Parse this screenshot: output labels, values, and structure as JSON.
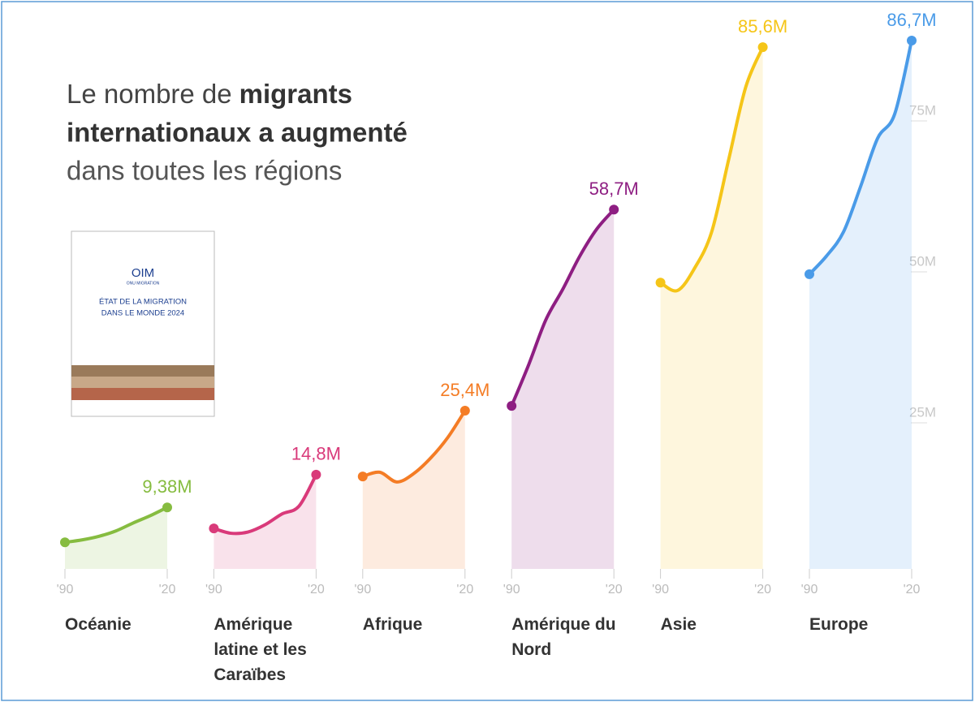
{
  "title": [
    "Le nombre de",
    "migrants",
    "internationaux a augmenté",
    "dans toutes les régions"
  ],
  "cover": {
    "logo": "OIM",
    "logo_sub": "ONU MIGRATION",
    "line1": "ÉTAT DE LA MIGRATION",
    "line2": "DANS LE MONDE 2024"
  },
  "chart_data": {
    "type": "line",
    "x": [
      1990,
      1995,
      2000,
      2005,
      2010,
      2015,
      2020
    ],
    "xlim": [
      1990,
      2020
    ],
    "xticks": [
      {
        "value": 1990,
        "label": "'90"
      },
      {
        "value": 2020,
        "label": "'20"
      }
    ],
    "ylim": [
      0,
      90
    ],
    "yticks": [
      {
        "value": 25,
        "label": "25M"
      },
      {
        "value": 50,
        "label": "50M"
      },
      {
        "value": 75,
        "label": "75M"
      }
    ],
    "series": [
      {
        "name": "Océanie",
        "color": "#86bc40",
        "values": [
          3.6,
          4.0,
          4.6,
          5.5,
          6.8,
          8.0,
          9.38
        ],
        "value_labels": [
          null,
          null,
          null,
          null,
          null,
          null,
          "9,38M"
        ]
      },
      {
        "name": "Amérique latine et les Caraïbes",
        "color": "#d93a7a",
        "values": [
          5.9,
          5.1,
          5.3,
          6.5,
          8.3,
          9.6,
          14.8
        ],
        "value_labels": [
          null,
          null,
          null,
          null,
          null,
          null,
          "14,8M"
        ]
      },
      {
        "name": "Afrique",
        "color": "#f47c25",
        "values": [
          14.5,
          15.2,
          13.6,
          15.0,
          17.6,
          21.0,
          25.4
        ],
        "value_labels": [
          null,
          null,
          null,
          null,
          null,
          null,
          "25,4M"
        ]
      },
      {
        "name": "Amérique du Nord",
        "color": "#8e1e82",
        "values": [
          26.2,
          33.0,
          40.4,
          45.5,
          51.0,
          55.5,
          58.7
        ],
        "value_labels": [
          null,
          null,
          null,
          null,
          null,
          null,
          "58,7M"
        ]
      },
      {
        "name": "Asie",
        "color": "#f5c518",
        "values": [
          46.6,
          45.3,
          49.0,
          55.0,
          67.0,
          79.0,
          85.6
        ],
        "value_labels": [
          null,
          null,
          null,
          null,
          null,
          null,
          "85,6M"
        ]
      },
      {
        "name": "Europe",
        "color": "#4a9be8",
        "values": [
          48.0,
          51.0,
          55.0,
          62.5,
          70.5,
          74.5,
          86.7
        ],
        "value_labels": [
          null,
          null,
          null,
          null,
          null,
          null,
          "86,7M"
        ]
      }
    ]
  }
}
